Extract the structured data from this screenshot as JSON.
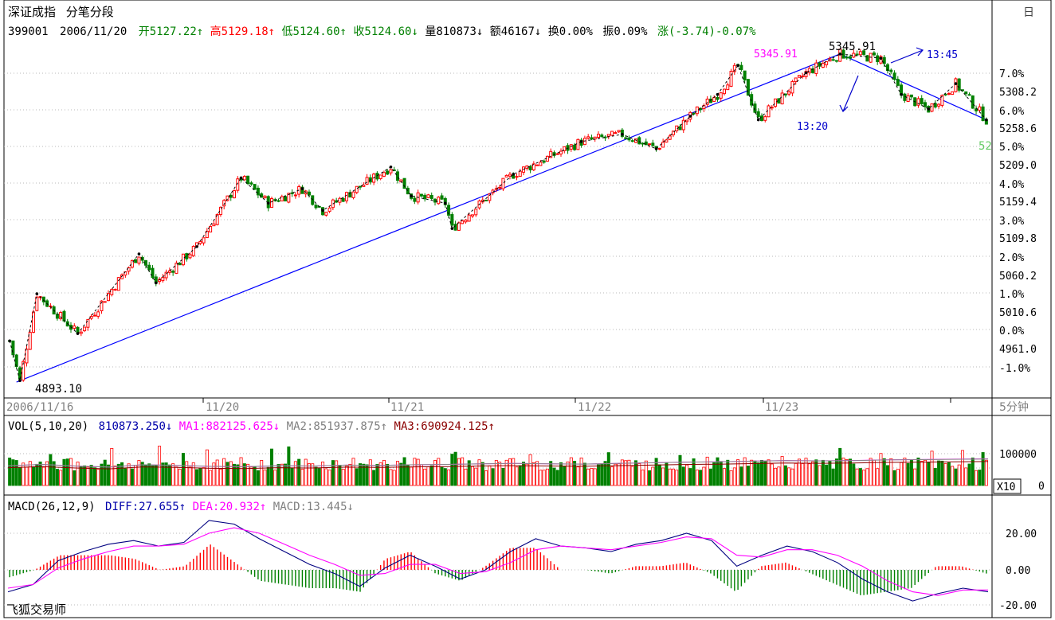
{
  "header": {
    "title": "深证成指",
    "period": "分笔分段",
    "code": "399001",
    "date": "2006/11/20",
    "open_label": "开",
    "open": "5127.22",
    "high_label": "高",
    "high": "5129.18",
    "low_label": "低",
    "low": "5124.60",
    "close_label": "收",
    "close": "5124.60",
    "volume_label": "量",
    "volume": "810873",
    "amount_label": "额",
    "amount": "46167",
    "turnover_label": "换",
    "turnover": "0.00%",
    "amplitude_label": "振",
    "amplitude": "0.09%",
    "change_label": "涨",
    "change": "(-3.74)-0.07%"
  },
  "toolbar": {
    "corner_icon": "window-restore-icon",
    "corner_glyph": "日"
  },
  "colors": {
    "up": "#ff0000",
    "down": "#008000",
    "ma": "#ff00ff",
    "trend": "#0000ff",
    "volume_ma2": "#8b0000"
  },
  "price_panel": {
    "y_axis": {
      "price_labels": [
        "5308.2",
        "5258.6",
        "5209.0",
        "5159.4",
        "5109.8",
        "5060.2",
        "5010.6",
        "4961.0"
      ],
      "pct_labels": [
        "7.0%",
        "6.0%",
        "5.0%",
        "4.0%",
        "3.0%",
        "2.0%",
        "1.0%",
        "0.0%",
        "-1.0%"
      ]
    },
    "low_annotation": "4893.10",
    "high_annotation": "5345.91",
    "high_annotation_magenta": "5345.91",
    "last_price_partial": "52",
    "time_marks": [
      "13:45",
      "13:20"
    ]
  },
  "x_axis": {
    "labels": [
      "2006/11/16",
      "11/20",
      "11/21",
      "11/22",
      "11/23"
    ],
    "period_label": "5分钟"
  },
  "volume_panel": {
    "legend": {
      "prefix": "VOL(5,10,20)",
      "vol": "810873.250",
      "ma1": "MA1:882125.625",
      "ma2": "MA2:851937.875",
      "ma3": "MA3:690924.125"
    },
    "y_labels": [
      "100000",
      "0"
    ],
    "scale_box": "X10"
  },
  "macd_panel": {
    "legend": {
      "prefix": "MACD(26,12,9)",
      "diff": "DIFF:27.655",
      "dea": "DEA:20.932",
      "macd": "MACD:13.445"
    },
    "y_labels": [
      "20.00",
      "0.00",
      "-20.00"
    ]
  },
  "footer": {
    "app_name": "飞狐交易师"
  },
  "chart_data": {
    "type": "candlestick",
    "symbol": "399001",
    "price_range": [
      4893.1,
      5345.91
    ],
    "x_day_labels": [
      "2006/11/16",
      "11/20",
      "11/21",
      "11/22",
      "11/23"
    ],
    "price_path": [
      {
        "x": 0,
        "y": 4950
      },
      {
        "x": 3,
        "y": 4895
      },
      {
        "x": 8,
        "y": 5015
      },
      {
        "x": 20,
        "y": 4960
      },
      {
        "x": 38,
        "y": 5070
      },
      {
        "x": 43,
        "y": 5030
      },
      {
        "x": 55,
        "y": 5080
      },
      {
        "x": 68,
        "y": 5175
      },
      {
        "x": 76,
        "y": 5140
      },
      {
        "x": 86,
        "y": 5160
      },
      {
        "x": 92,
        "y": 5130
      },
      {
        "x": 112,
        "y": 5190
      },
      {
        "x": 118,
        "y": 5150
      },
      {
        "x": 128,
        "y": 5140
      },
      {
        "x": 130,
        "y": 5105
      },
      {
        "x": 148,
        "y": 5180
      },
      {
        "x": 168,
        "y": 5225
      },
      {
        "x": 180,
        "y": 5235
      },
      {
        "x": 190,
        "y": 5215
      },
      {
        "x": 200,
        "y": 5260
      },
      {
        "x": 208,
        "y": 5290
      },
      {
        "x": 214,
        "y": 5330
      },
      {
        "x": 220,
        "y": 5255
      },
      {
        "x": 234,
        "y": 5320
      },
      {
        "x": 244,
        "y": 5345.91
      },
      {
        "x": 256,
        "y": 5340
      },
      {
        "x": 262,
        "y": 5290
      },
      {
        "x": 270,
        "y": 5270
      },
      {
        "x": 278,
        "y": 5305
      },
      {
        "x": 287,
        "y": 5255
      }
    ],
    "trendlines": [
      {
        "from": {
          "x": 2,
          "y": 4893.1
        },
        "to": {
          "x": 244,
          "y": 5345.91
        }
      },
      {
        "from": {
          "x": 244,
          "y": 5345.91
        },
        "to": {
          "x": 287,
          "y": 5255
        }
      }
    ],
    "volume_ma": [
      60000,
      64000,
      59000,
      56000,
      63000,
      61000,
      58000,
      57000,
      60000,
      59000,
      62000,
      61000,
      63000,
      64000,
      66000,
      67000,
      66000,
      65000,
      67000,
      69000,
      71000,
      72000,
      74000,
      76000,
      75000,
      76000,
      78000,
      79000,
      80000,
      81000
    ],
    "macd": {
      "diff": [
        -12,
        -8,
        5,
        10,
        14,
        16,
        13,
        15,
        27,
        25,
        17,
        10,
        3,
        -2,
        -9,
        1,
        8,
        2,
        -5,
        0,
        10,
        17,
        13,
        12,
        10,
        14,
        16,
        20,
        16,
        2,
        8,
        13,
        10,
        4,
        -5,
        -12,
        -17,
        -13,
        -10,
        -12
      ],
      "dea": [
        -10,
        -8,
        1,
        6,
        10,
        13,
        13,
        14,
        20,
        23,
        20,
        14,
        8,
        3,
        -3,
        -2,
        3,
        3,
        -2,
        -1,
        4,
        11,
        13,
        12,
        11,
        13,
        15,
        18,
        17,
        8,
        7,
        11,
        11,
        8,
        2,
        -6,
        -12,
        -14,
        -11,
        -11
      ],
      "hist_range": [
        -20,
        20
      ]
    }
  }
}
